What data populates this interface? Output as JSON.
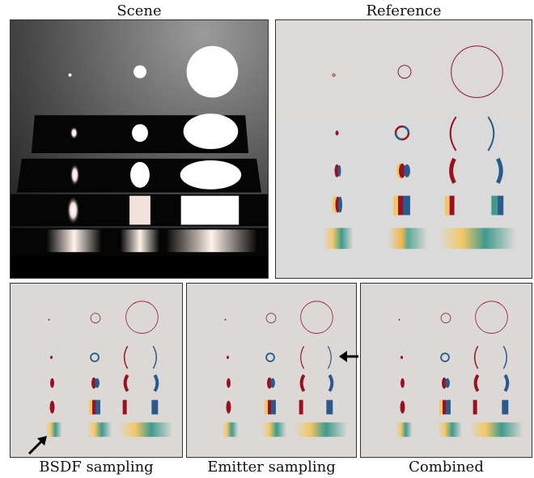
{
  "figure": {
    "top_labels": {
      "scene": "Scene",
      "reference": "Reference"
    },
    "bottom_labels": {
      "bsdf": "BSDF sampling",
      "emitter": "Emitter sampling",
      "combined": "Combined"
    }
  },
  "colors": {
    "background_gray": "#ddd9d6",
    "red_lobe": "#9a1020",
    "blue_lobe": "#2a5a8c",
    "yellow_band": "#f4c765",
    "teal_band": "#3f9a8e",
    "scene_light": "#ffffff"
  },
  "icons": {
    "arrow_bsdf": "arrow-up-right-icon",
    "arrow_emitter": "arrow-left-icon"
  }
}
